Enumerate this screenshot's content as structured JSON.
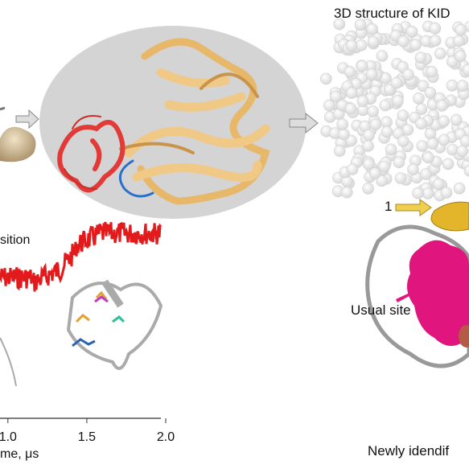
{
  "labels": {
    "structure_title": "3D structure of KID",
    "site_1": "1",
    "transition": "sition",
    "usual_site": "Usual site",
    "new_site": "Newly idendif",
    "x_axis": "me, μs"
  },
  "axis": {
    "xlim": [
      0.95,
      2.0
    ],
    "xticks": [
      {
        "value": 1,
        "label": "1.0"
      },
      {
        "value": 1.5,
        "label": "1.5"
      },
      {
        "value": 2,
        "label": "2.0"
      }
    ]
  }
}
